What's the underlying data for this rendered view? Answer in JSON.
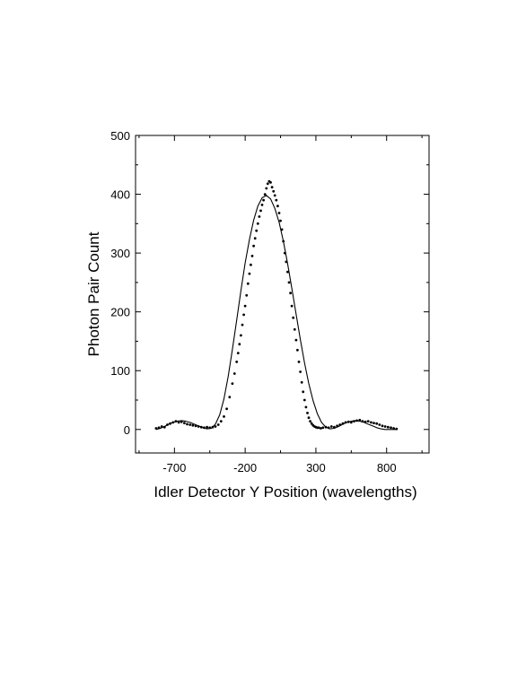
{
  "chart_data": {
    "type": "scatter",
    "xlabel": "Idler Detector Y Position (wavelengths)",
    "ylabel": "Photon Pair Count",
    "xlim": [
      -975,
      1100
    ],
    "ylim": [
      -40,
      500
    ],
    "xticks": [
      -700,
      -200,
      300,
      800
    ],
    "yticks": [
      0,
      100,
      200,
      300,
      400,
      500
    ],
    "grid": false,
    "legend": "none",
    "colors": {
      "points": "#000000",
      "line": "#000000",
      "axes": "#000000"
    },
    "series": [
      {
        "kind": "points",
        "x": [
          -830,
          -810,
          -790,
          -770,
          -750,
          -730,
          -710,
          -690,
          -670,
          -650,
          -630,
          -610,
          -590,
          -570,
          -550,
          -530,
          -510,
          -490,
          -470,
          -450,
          -430,
          -410,
          -390,
          -370,
          -350,
          -330,
          -310,
          -290,
          -275,
          -260,
          -250,
          -240,
          -230,
          -220,
          -210,
          -200,
          -190,
          -180,
          -170,
          -160,
          -150,
          -140,
          -130,
          -120,
          -110,
          -100,
          -90,
          -80,
          -70,
          -60,
          -50,
          -40,
          -30,
          -20,
          -10,
          0,
          10,
          20,
          30,
          40,
          50,
          60,
          70,
          80,
          90,
          100,
          110,
          120,
          130,
          140,
          150,
          160,
          170,
          180,
          190,
          200,
          210,
          220,
          230,
          240,
          250,
          260,
          270,
          280,
          290,
          300,
          310,
          320,
          335,
          350,
          370,
          390,
          410,
          430,
          450,
          470,
          490,
          510,
          530,
          550,
          570,
          590,
          610,
          630,
          650,
          670,
          690,
          710,
          730,
          750,
          770,
          790,
          810,
          830,
          850,
          870
        ],
        "y": [
          2,
          3,
          5,
          4,
          8,
          10,
          12,
          14,
          12,
          13,
          11,
          9,
          8,
          7,
          6,
          5,
          4,
          3,
          4,
          3,
          4,
          5,
          8,
          14,
          22,
          35,
          55,
          78,
          95,
          115,
          130,
          145,
          160,
          178,
          195,
          210,
          228,
          248,
          265,
          280,
          295,
          312,
          325,
          338,
          350,
          362,
          372,
          382,
          390,
          400,
          410,
          418,
          422,
          420,
          412,
          405,
          398,
          390,
          380,
          368,
          355,
          340,
          320,
          300,
          285,
          268,
          250,
          232,
          210,
          190,
          170,
          152,
          135,
          115,
          98,
          80,
          64,
          50,
          38,
          28,
          20,
          14,
          10,
          7,
          5,
          4,
          3,
          3,
          2,
          3,
          4,
          3,
          5,
          4,
          6,
          8,
          10,
          12,
          13,
          12,
          14,
          15,
          16,
          14,
          13,
          14,
          12,
          11,
          10,
          8,
          6,
          5,
          4,
          3,
          2,
          1
        ]
      },
      {
        "kind": "line",
        "x": [
          -830,
          -800,
          -770,
          -740,
          -710,
          -680,
          -650,
          -620,
          -590,
          -560,
          -530,
          -500,
          -470,
          -440,
          -410,
          -380,
          -350,
          -320,
          -290,
          -260,
          -230,
          -200,
          -170,
          -140,
          -110,
          -80,
          -50,
          -20,
          10,
          40,
          70,
          100,
          130,
          160,
          190,
          220,
          250,
          280,
          310,
          340,
          370,
          400,
          430,
          460,
          490,
          520,
          550,
          580,
          610,
          640,
          670,
          700,
          730,
          760,
          790,
          820,
          850,
          870
        ],
        "y": [
          0,
          2,
          5,
          9,
          12,
          14,
          15,
          14,
          12,
          9,
          6,
          3,
          1,
          2,
          9,
          25,
          52,
          90,
          136,
          186,
          236,
          283,
          323,
          356,
          380,
          394,
          398,
          392,
          376,
          352,
          320,
          282,
          240,
          196,
          153,
          113,
          78,
          49,
          27,
          12,
          4,
          1,
          2,
          5,
          9,
          12,
          14,
          15,
          14,
          12,
          9,
          6,
          3,
          1,
          0,
          0,
          0,
          0
        ]
      }
    ]
  }
}
